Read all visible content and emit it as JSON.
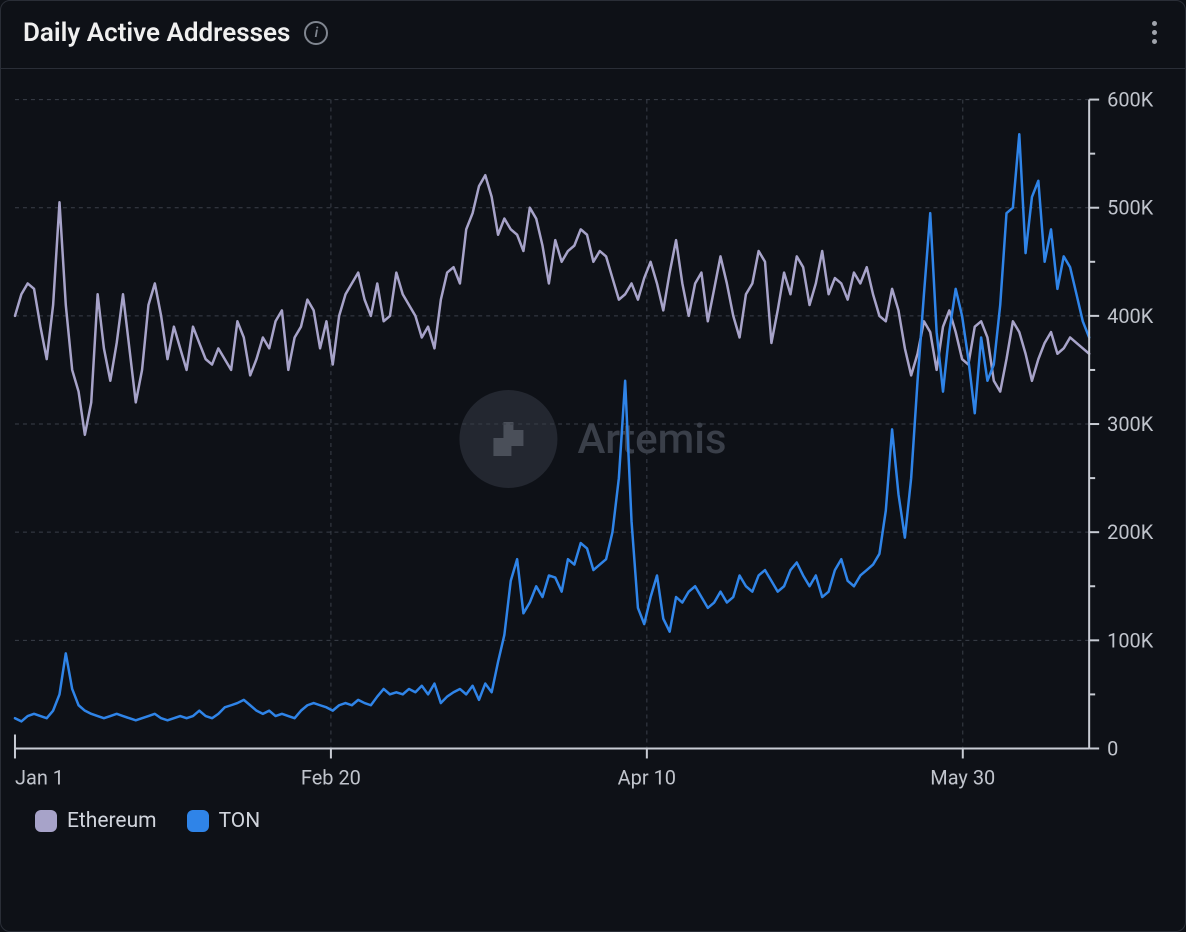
{
  "header": {
    "title": "Daily Active Addresses"
  },
  "watermark": {
    "text": "Artemis",
    "logo_bg": "#232730",
    "logo_fg": "#4a4f59",
    "text_color": "#3a3f49",
    "fontsize": 42
  },
  "chart": {
    "type": "line",
    "background_color": "#0e1117",
    "grid_color": "#3a3f49",
    "axis_line_color": "#c8ccd4",
    "axis_label_color": "#c0c4cc",
    "axis_label_fontsize": 20,
    "line_width": 2.5,
    "y": {
      "min": 0,
      "max": 600000,
      "tick_step": 100000,
      "tick_labels": [
        "0",
        "100K",
        "200K",
        "300K",
        "400K",
        "500K",
        "600K"
      ]
    },
    "x": {
      "min": 0,
      "max": 170,
      "tick_positions": [
        0,
        50,
        100,
        150
      ],
      "tick_labels": [
        "Jan 1",
        "Feb 20",
        "Apr 10",
        "May 30"
      ]
    },
    "series": [
      {
        "name": "Ethereum",
        "color": "#a7a3c9",
        "values": [
          400,
          420,
          430,
          425,
          390,
          360,
          410,
          505,
          410,
          350,
          330,
          290,
          320,
          420,
          370,
          340,
          375,
          420,
          370,
          320,
          350,
          410,
          430,
          400,
          360,
          390,
          370,
          350,
          390,
          375,
          360,
          355,
          370,
          360,
          350,
          395,
          380,
          345,
          360,
          380,
          370,
          395,
          405,
          350,
          380,
          390,
          415,
          405,
          370,
          395,
          355,
          400,
          420,
          430,
          440,
          415,
          400,
          430,
          395,
          400,
          440,
          420,
          410,
          400,
          380,
          390,
          370,
          415,
          440,
          445,
          430,
          480,
          495,
          520,
          530,
          510,
          475,
          490,
          480,
          475,
          460,
          500,
          490,
          465,
          430,
          470,
          450,
          460,
          465,
          480,
          475,
          450,
          460,
          455,
          435,
          415,
          420,
          430,
          415,
          435,
          450,
          430,
          405,
          440,
          470,
          430,
          400,
          430,
          440,
          395,
          425,
          455,
          430,
          400,
          380,
          420,
          430,
          460,
          450,
          375,
          405,
          440,
          420,
          455,
          445,
          410,
          430,
          460,
          420,
          435,
          430,
          415,
          440,
          430,
          445,
          420,
          400,
          395,
          425,
          405,
          370,
          345,
          365,
          395,
          385,
          350,
          390,
          405,
          385,
          360,
          355,
          390,
          395,
          380,
          340,
          330,
          360,
          395,
          385,
          365,
          340,
          360,
          375,
          385,
          365,
          370,
          380,
          375,
          370,
          365
        ]
      },
      {
        "name": "TON",
        "color": "#2f84e8",
        "values": [
          28,
          25,
          30,
          32,
          30,
          28,
          35,
          50,
          88,
          55,
          40,
          35,
          32,
          30,
          28,
          30,
          32,
          30,
          28,
          26,
          28,
          30,
          32,
          28,
          26,
          28,
          30,
          28,
          30,
          35,
          30,
          28,
          32,
          38,
          40,
          42,
          45,
          40,
          35,
          32,
          35,
          30,
          32,
          30,
          28,
          35,
          40,
          42,
          40,
          38,
          35,
          40,
          42,
          40,
          45,
          42,
          40,
          48,
          55,
          50,
          52,
          50,
          55,
          52,
          58,
          50,
          60,
          42,
          48,
          52,
          55,
          50,
          58,
          45,
          60,
          52,
          80,
          105,
          155,
          175,
          125,
          135,
          150,
          140,
          160,
          158,
          145,
          175,
          170,
          190,
          185,
          165,
          170,
          175,
          200,
          250,
          340,
          210,
          130,
          115,
          140,
          160,
          120,
          108,
          140,
          135,
          145,
          150,
          140,
          130,
          135,
          145,
          135,
          140,
          160,
          150,
          145,
          160,
          165,
          155,
          145,
          150,
          165,
          172,
          160,
          150,
          160,
          140,
          145,
          165,
          175,
          155,
          150,
          160,
          165,
          170,
          180,
          220,
          295,
          235,
          195,
          250,
          340,
          420,
          495,
          385,
          330,
          385,
          425,
          400,
          360,
          310,
          380,
          340,
          355,
          410,
          495,
          500,
          568,
          458,
          510,
          525,
          450,
          480,
          425,
          455,
          445,
          420,
          395,
          380
        ]
      }
    ]
  },
  "legend": {
    "items": [
      {
        "label": "Ethereum",
        "color": "#a7a3c9"
      },
      {
        "label": "TON",
        "color": "#2f84e8"
      }
    ],
    "swatch_radius": 6,
    "label_fontsize": 21,
    "label_color": "#d0d4dc"
  }
}
